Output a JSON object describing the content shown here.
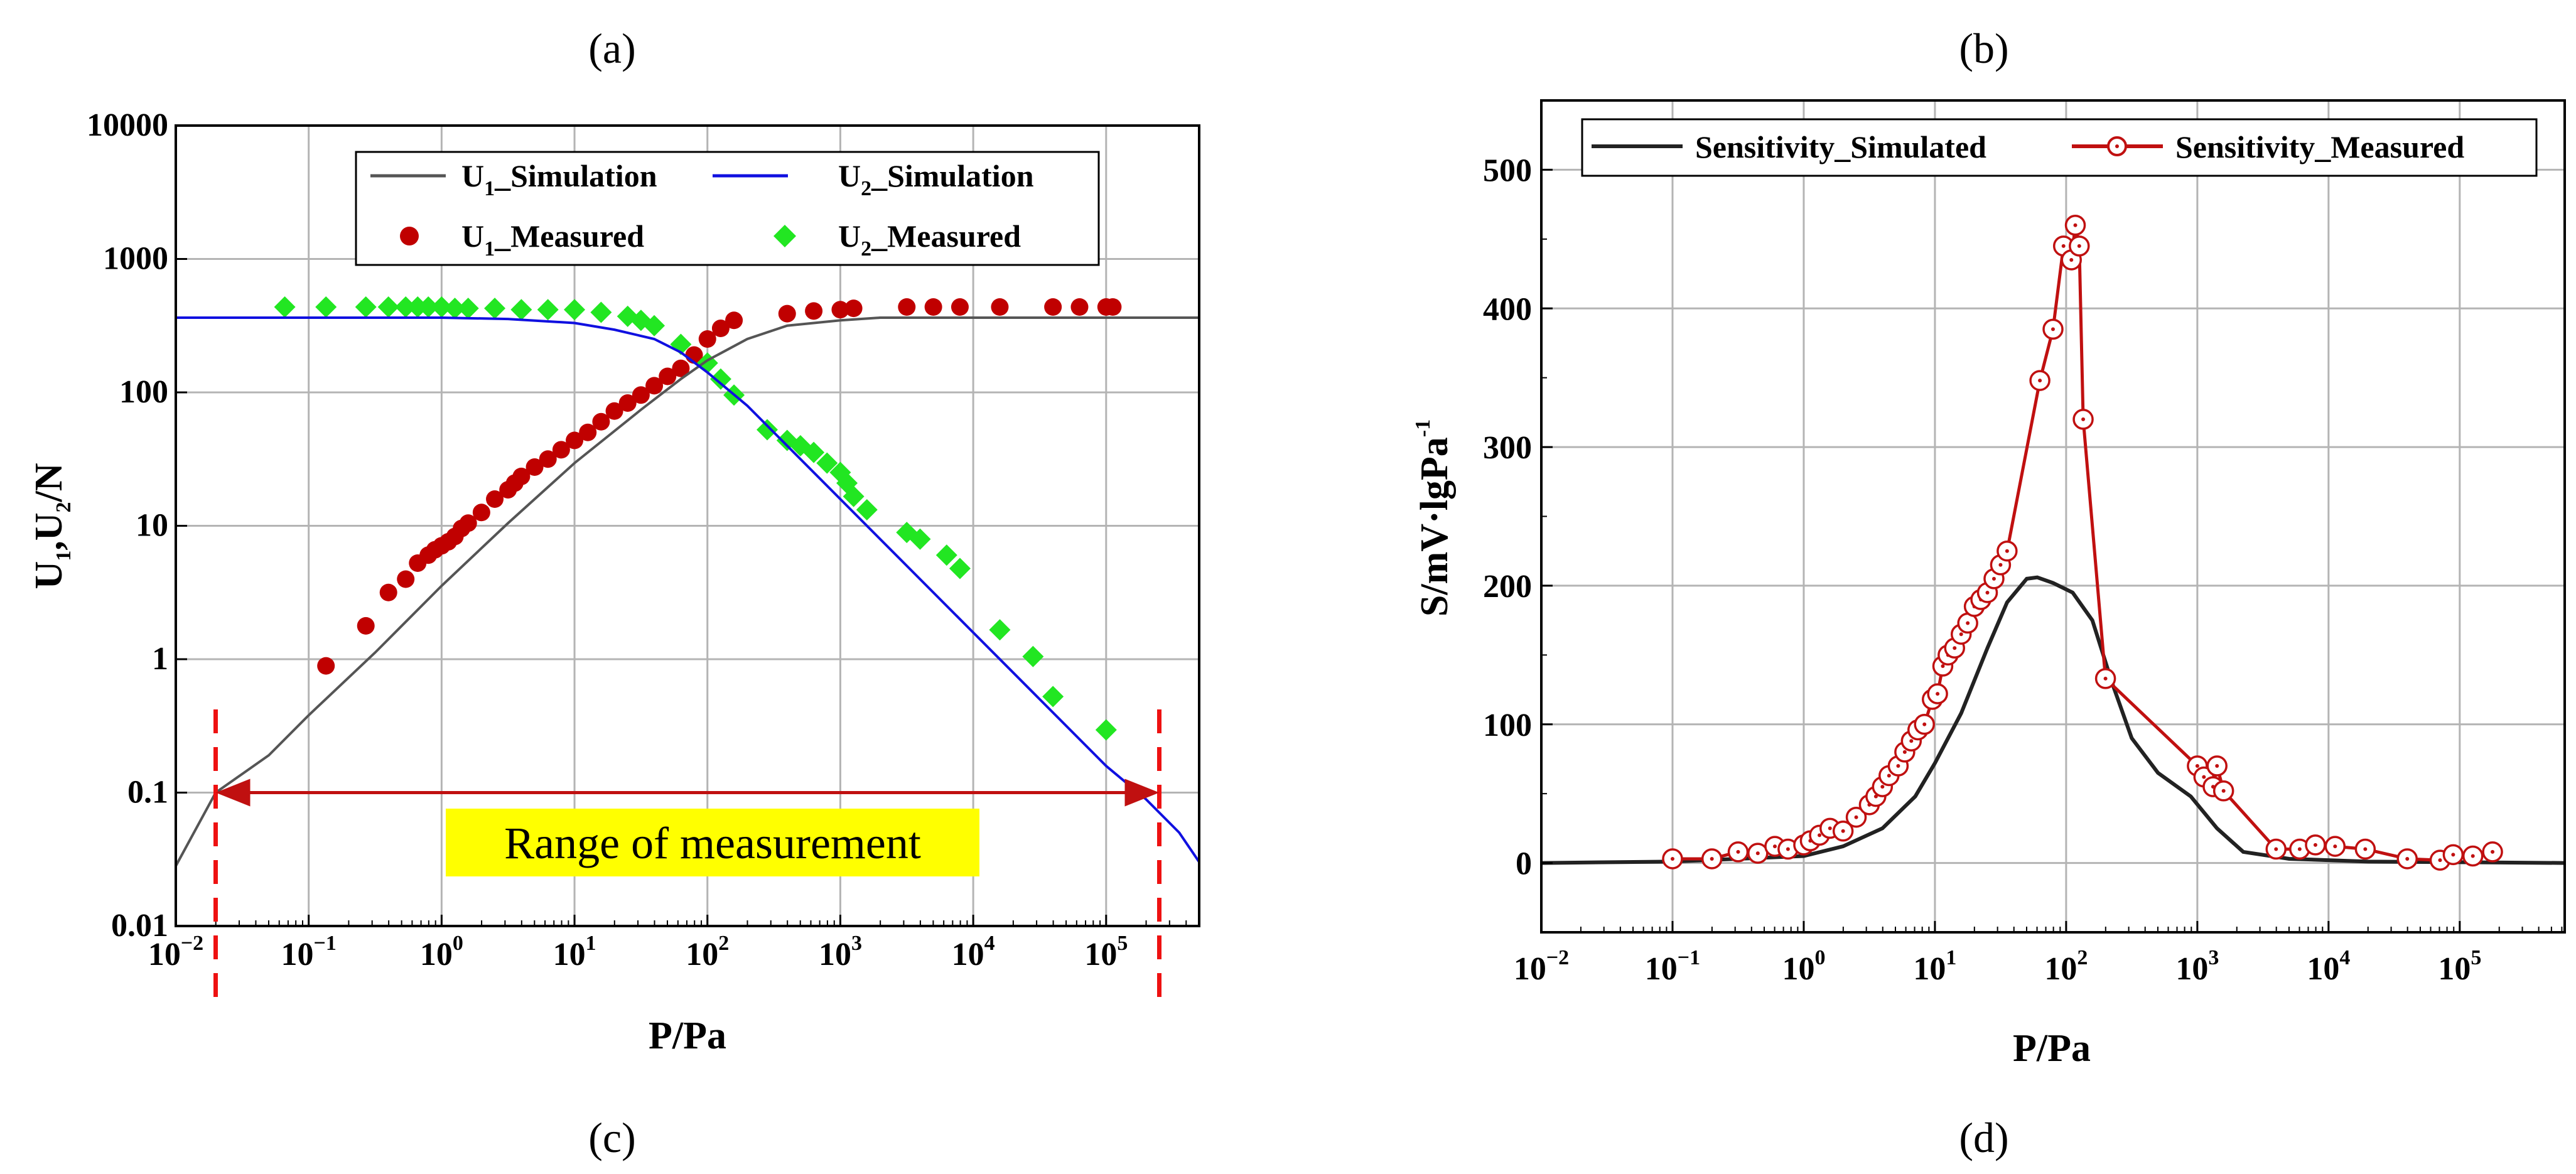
{
  "panel_labels": {
    "top_left": "(a)",
    "top_right": "(b)",
    "bottom_left": "(c)",
    "bottom_right": "(d)"
  },
  "chart_data": [
    {
      "type": "scatter",
      "id": "left",
      "xlabel": "P/Pa",
      "ylabel": "U1,U2/N",
      "xscale": "log",
      "yscale": "log",
      "xlim_exp": [
        -2,
        5.7
      ],
      "ylim_exp": [
        -2,
        4
      ],
      "x_tick_exponents": [
        -2,
        -1,
        0,
        1,
        2,
        3,
        4,
        5
      ],
      "y_ticks": [
        "0.01",
        "0.1",
        "1",
        "10",
        "100",
        "1000",
        "10000"
      ],
      "grid": true,
      "legend_position": "top",
      "legend": {
        "u1_sim": {
          "main": "U",
          "sub": "1",
          "rest": "_Simulation"
        },
        "u2_sim": {
          "main": "U",
          "sub": "2",
          "rest": "_Simulation"
        },
        "u1_meas": {
          "main": "U",
          "sub": "1",
          "rest": "_Measured"
        },
        "u2_meas": {
          "main": "U",
          "sub": "2",
          "rest": "_Measured"
        }
      },
      "colors": {
        "u1_sim": "#555555",
        "u2_sim": "#1010e0",
        "u1_meas": "#c00000",
        "u2_meas": "#22e622",
        "range": "#c01010",
        "dashed": "#ee1111",
        "highlight": "#ffff00"
      },
      "annotation": {
        "text": "Range of measurement",
        "x_from_exp": -1.7,
        "x_to_exp": 5.4,
        "y": 0.1
      },
      "series": [
        {
          "name": "U1_Simulation",
          "kind": "line",
          "points": [
            [
              -2,
              -1.55
            ],
            [
              -1.7,
              -1.0
            ],
            [
              -1.3,
              -0.72
            ],
            [
              -1,
              -0.42
            ],
            [
              -0.5,
              0.05
            ],
            [
              0,
              0.55
            ],
            [
              0.5,
              1.02
            ],
            [
              1,
              1.47
            ],
            [
              1.5,
              1.87
            ],
            [
              1.8,
              2.1
            ],
            [
              2,
              2.24
            ],
            [
              2.3,
              2.4
            ],
            [
              2.6,
              2.5
            ],
            [
              3,
              2.54
            ],
            [
              3.3,
              2.56
            ],
            [
              4,
              2.56
            ],
            [
              5.7,
              2.56
            ]
          ]
        },
        {
          "name": "U2_Simulation",
          "kind": "line",
          "points": [
            [
              -2,
              2.56
            ],
            [
              0,
              2.56
            ],
            [
              0.5,
              2.55
            ],
            [
              1,
              2.52
            ],
            [
              1.3,
              2.47
            ],
            [
              1.6,
              2.4
            ],
            [
              1.8,
              2.3
            ],
            [
              2,
              2.15
            ],
            [
              2.3,
              1.9
            ],
            [
              2.6,
              1.6
            ],
            [
              3,
              1.2
            ],
            [
              3.5,
              0.7
            ],
            [
              4,
              0.2
            ],
            [
              4.5,
              -0.3
            ],
            [
              5,
              -0.8
            ],
            [
              5.3,
              -1.05
            ],
            [
              5.55,
              -1.3
            ],
            [
              5.7,
              -1.52
            ]
          ]
        },
        {
          "name": "U1_Measured",
          "kind": "scatter",
          "points": [
            [
              -0.87,
              -0.05
            ],
            [
              -0.57,
              0.25
            ],
            [
              -0.4,
              0.5
            ],
            [
              -0.27,
              0.6
            ],
            [
              -0.18,
              0.72
            ],
            [
              -0.1,
              0.78
            ],
            [
              -0.05,
              0.82
            ],
            [
              0,
              0.85
            ],
            [
              0.05,
              0.88
            ],
            [
              0.1,
              0.92
            ],
            [
              0.15,
              0.98
            ],
            [
              0.2,
              1.02
            ],
            [
              0.3,
              1.1
            ],
            [
              0.4,
              1.2
            ],
            [
              0.5,
              1.27
            ],
            [
              0.55,
              1.32
            ],
            [
              0.6,
              1.37
            ],
            [
              0.7,
              1.44
            ],
            [
              0.8,
              1.5
            ],
            [
              0.9,
              1.57
            ],
            [
              1,
              1.64
            ],
            [
              1.1,
              1.7
            ],
            [
              1.2,
              1.78
            ],
            [
              1.3,
              1.86
            ],
            [
              1.4,
              1.92
            ],
            [
              1.5,
              1.98
            ],
            [
              1.6,
              2.05
            ],
            [
              1.7,
              2.12
            ],
            [
              1.8,
              2.18
            ],
            [
              1.9,
              2.28
            ],
            [
              2,
              2.4
            ],
            [
              2.1,
              2.48
            ],
            [
              2.2,
              2.54
            ],
            [
              2.6,
              2.59
            ],
            [
              2.8,
              2.61
            ],
            [
              3,
              2.62
            ],
            [
              3.1,
              2.63
            ],
            [
              3.5,
              2.64
            ],
            [
              3.7,
              2.64
            ],
            [
              3.9,
              2.64
            ],
            [
              4.2,
              2.64
            ],
            [
              4.6,
              2.64
            ],
            [
              4.8,
              2.64
            ],
            [
              5.0,
              2.64
            ],
            [
              5.05,
              2.64
            ]
          ]
        },
        {
          "name": "U2_Measured",
          "kind": "scatter",
          "points": [
            [
              -1.18,
              2.64
            ],
            [
              -0.87,
              2.64
            ],
            [
              -0.57,
              2.64
            ],
            [
              -0.4,
              2.64
            ],
            [
              -0.27,
              2.64
            ],
            [
              -0.18,
              2.64
            ],
            [
              -0.1,
              2.64
            ],
            [
              0,
              2.64
            ],
            [
              0.1,
              2.63
            ],
            [
              0.2,
              2.63
            ],
            [
              0.4,
              2.63
            ],
            [
              0.6,
              2.62
            ],
            [
              0.8,
              2.62
            ],
            [
              1,
              2.62
            ],
            [
              1.2,
              2.6
            ],
            [
              1.4,
              2.57
            ],
            [
              1.5,
              2.54
            ],
            [
              1.6,
              2.5
            ],
            [
              1.8,
              2.36
            ],
            [
              2.0,
              2.22
            ],
            [
              2.1,
              2.1
            ],
            [
              2.2,
              1.98
            ],
            [
              2.45,
              1.72
            ],
            [
              2.6,
              1.64
            ],
            [
              2.7,
              1.6
            ],
            [
              2.8,
              1.55
            ],
            [
              2.9,
              1.47
            ],
            [
              3.0,
              1.4
            ],
            [
              3.05,
              1.32
            ],
            [
              3.1,
              1.22
            ],
            [
              3.2,
              1.12
            ],
            [
              3.5,
              0.95
            ],
            [
              3.6,
              0.9
            ],
            [
              3.8,
              0.78
            ],
            [
              3.9,
              0.68
            ],
            [
              4.2,
              0.22
            ],
            [
              4.45,
              0.02
            ],
            [
              4.6,
              -0.28
            ],
            [
              5.0,
              -0.53
            ]
          ]
        }
      ]
    },
    {
      "type": "line",
      "id": "right",
      "xlabel": "P/Pa",
      "ylabel": {
        "main": "S/mV·lgPa",
        "sup": "-1"
      },
      "xscale": "log",
      "xlim_exp": [
        -2,
        5.8
      ],
      "ylim": [
        -50,
        550
      ],
      "x_tick_exponents": [
        -2,
        -1,
        0,
        1,
        2,
        3,
        4,
        5
      ],
      "y_ticks": [
        0,
        100,
        200,
        300,
        400,
        500
      ],
      "grid": true,
      "legend_position": "top",
      "legend": {
        "simulated": "Sensitivity_Simulated",
        "measured": "Sensitivity_Measured"
      },
      "colors": {
        "simulated": "#222222",
        "measured": "#c01010"
      },
      "series": [
        {
          "name": "Sensitivity_Simulated",
          "kind": "line",
          "points": [
            [
              -2,
              0
            ],
            [
              -1,
              1
            ],
            [
              0,
              5
            ],
            [
              0.3,
              12
            ],
            [
              0.6,
              25
            ],
            [
              0.85,
              48
            ],
            [
              1,
              72
            ],
            [
              1.2,
              108
            ],
            [
              1.4,
              155
            ],
            [
              1.55,
              188
            ],
            [
              1.7,
              205
            ],
            [
              1.78,
              206
            ],
            [
              1.9,
              202
            ],
            [
              2.05,
              195
            ],
            [
              2.2,
              175
            ],
            [
              2.35,
              130
            ],
            [
              2.5,
              90
            ],
            [
              2.7,
              65
            ],
            [
              2.95,
              48
            ],
            [
              3.15,
              25
            ],
            [
              3.35,
              8
            ],
            [
              3.7,
              3
            ],
            [
              4.3,
              1
            ],
            [
              5.8,
              0
            ]
          ]
        },
        {
          "name": "Sensitivity_Measured",
          "kind": "line-marker",
          "points": [
            [
              -1,
              3
            ],
            [
              -0.7,
              3
            ],
            [
              -0.5,
              8
            ],
            [
              -0.35,
              7
            ],
            [
              -0.22,
              12
            ],
            [
              -0.12,
              10
            ],
            [
              0,
              13
            ],
            [
              0.05,
              16
            ],
            [
              0.12,
              20
            ],
            [
              0.2,
              25
            ],
            [
              0.3,
              23
            ],
            [
              0.4,
              33
            ],
            [
              0.5,
              42
            ],
            [
              0.55,
              48
            ],
            [
              0.6,
              55
            ],
            [
              0.65,
              63
            ],
            [
              0.72,
              70
            ],
            [
              0.77,
              80
            ],
            [
              0.82,
              88
            ],
            [
              0.87,
              96
            ],
            [
              0.92,
              100
            ],
            [
              0.98,
              118
            ],
            [
              1.02,
              122
            ],
            [
              1.06,
              142
            ],
            [
              1.1,
              150
            ],
            [
              1.15,
              155
            ],
            [
              1.2,
              165
            ],
            [
              1.25,
              173
            ],
            [
              1.3,
              185
            ],
            [
              1.35,
              190
            ],
            [
              1.4,
              195
            ],
            [
              1.45,
              205
            ],
            [
              1.5,
              215
            ],
            [
              1.55,
              225
            ],
            [
              1.8,
              348
            ],
            [
              1.9,
              385
            ],
            [
              1.98,
              445
            ],
            [
              2.04,
              435
            ],
            [
              2.07,
              460
            ],
            [
              2.1,
              445
            ],
            [
              2.13,
              320
            ],
            [
              2.3,
              133
            ],
            [
              3.0,
              70
            ],
            [
              3.05,
              62
            ],
            [
              3.12,
              55
            ],
            [
              3.15,
              70
            ],
            [
              3.2,
              52
            ],
            [
              3.6,
              10
            ],
            [
              3.78,
              10
            ],
            [
              3.9,
              13
            ],
            [
              4.05,
              12
            ],
            [
              4.28,
              10
            ],
            [
              4.6,
              3
            ],
            [
              4.85,
              2
            ],
            [
              4.95,
              6
            ],
            [
              5.1,
              5
            ],
            [
              5.25,
              8
            ]
          ]
        }
      ]
    }
  ]
}
